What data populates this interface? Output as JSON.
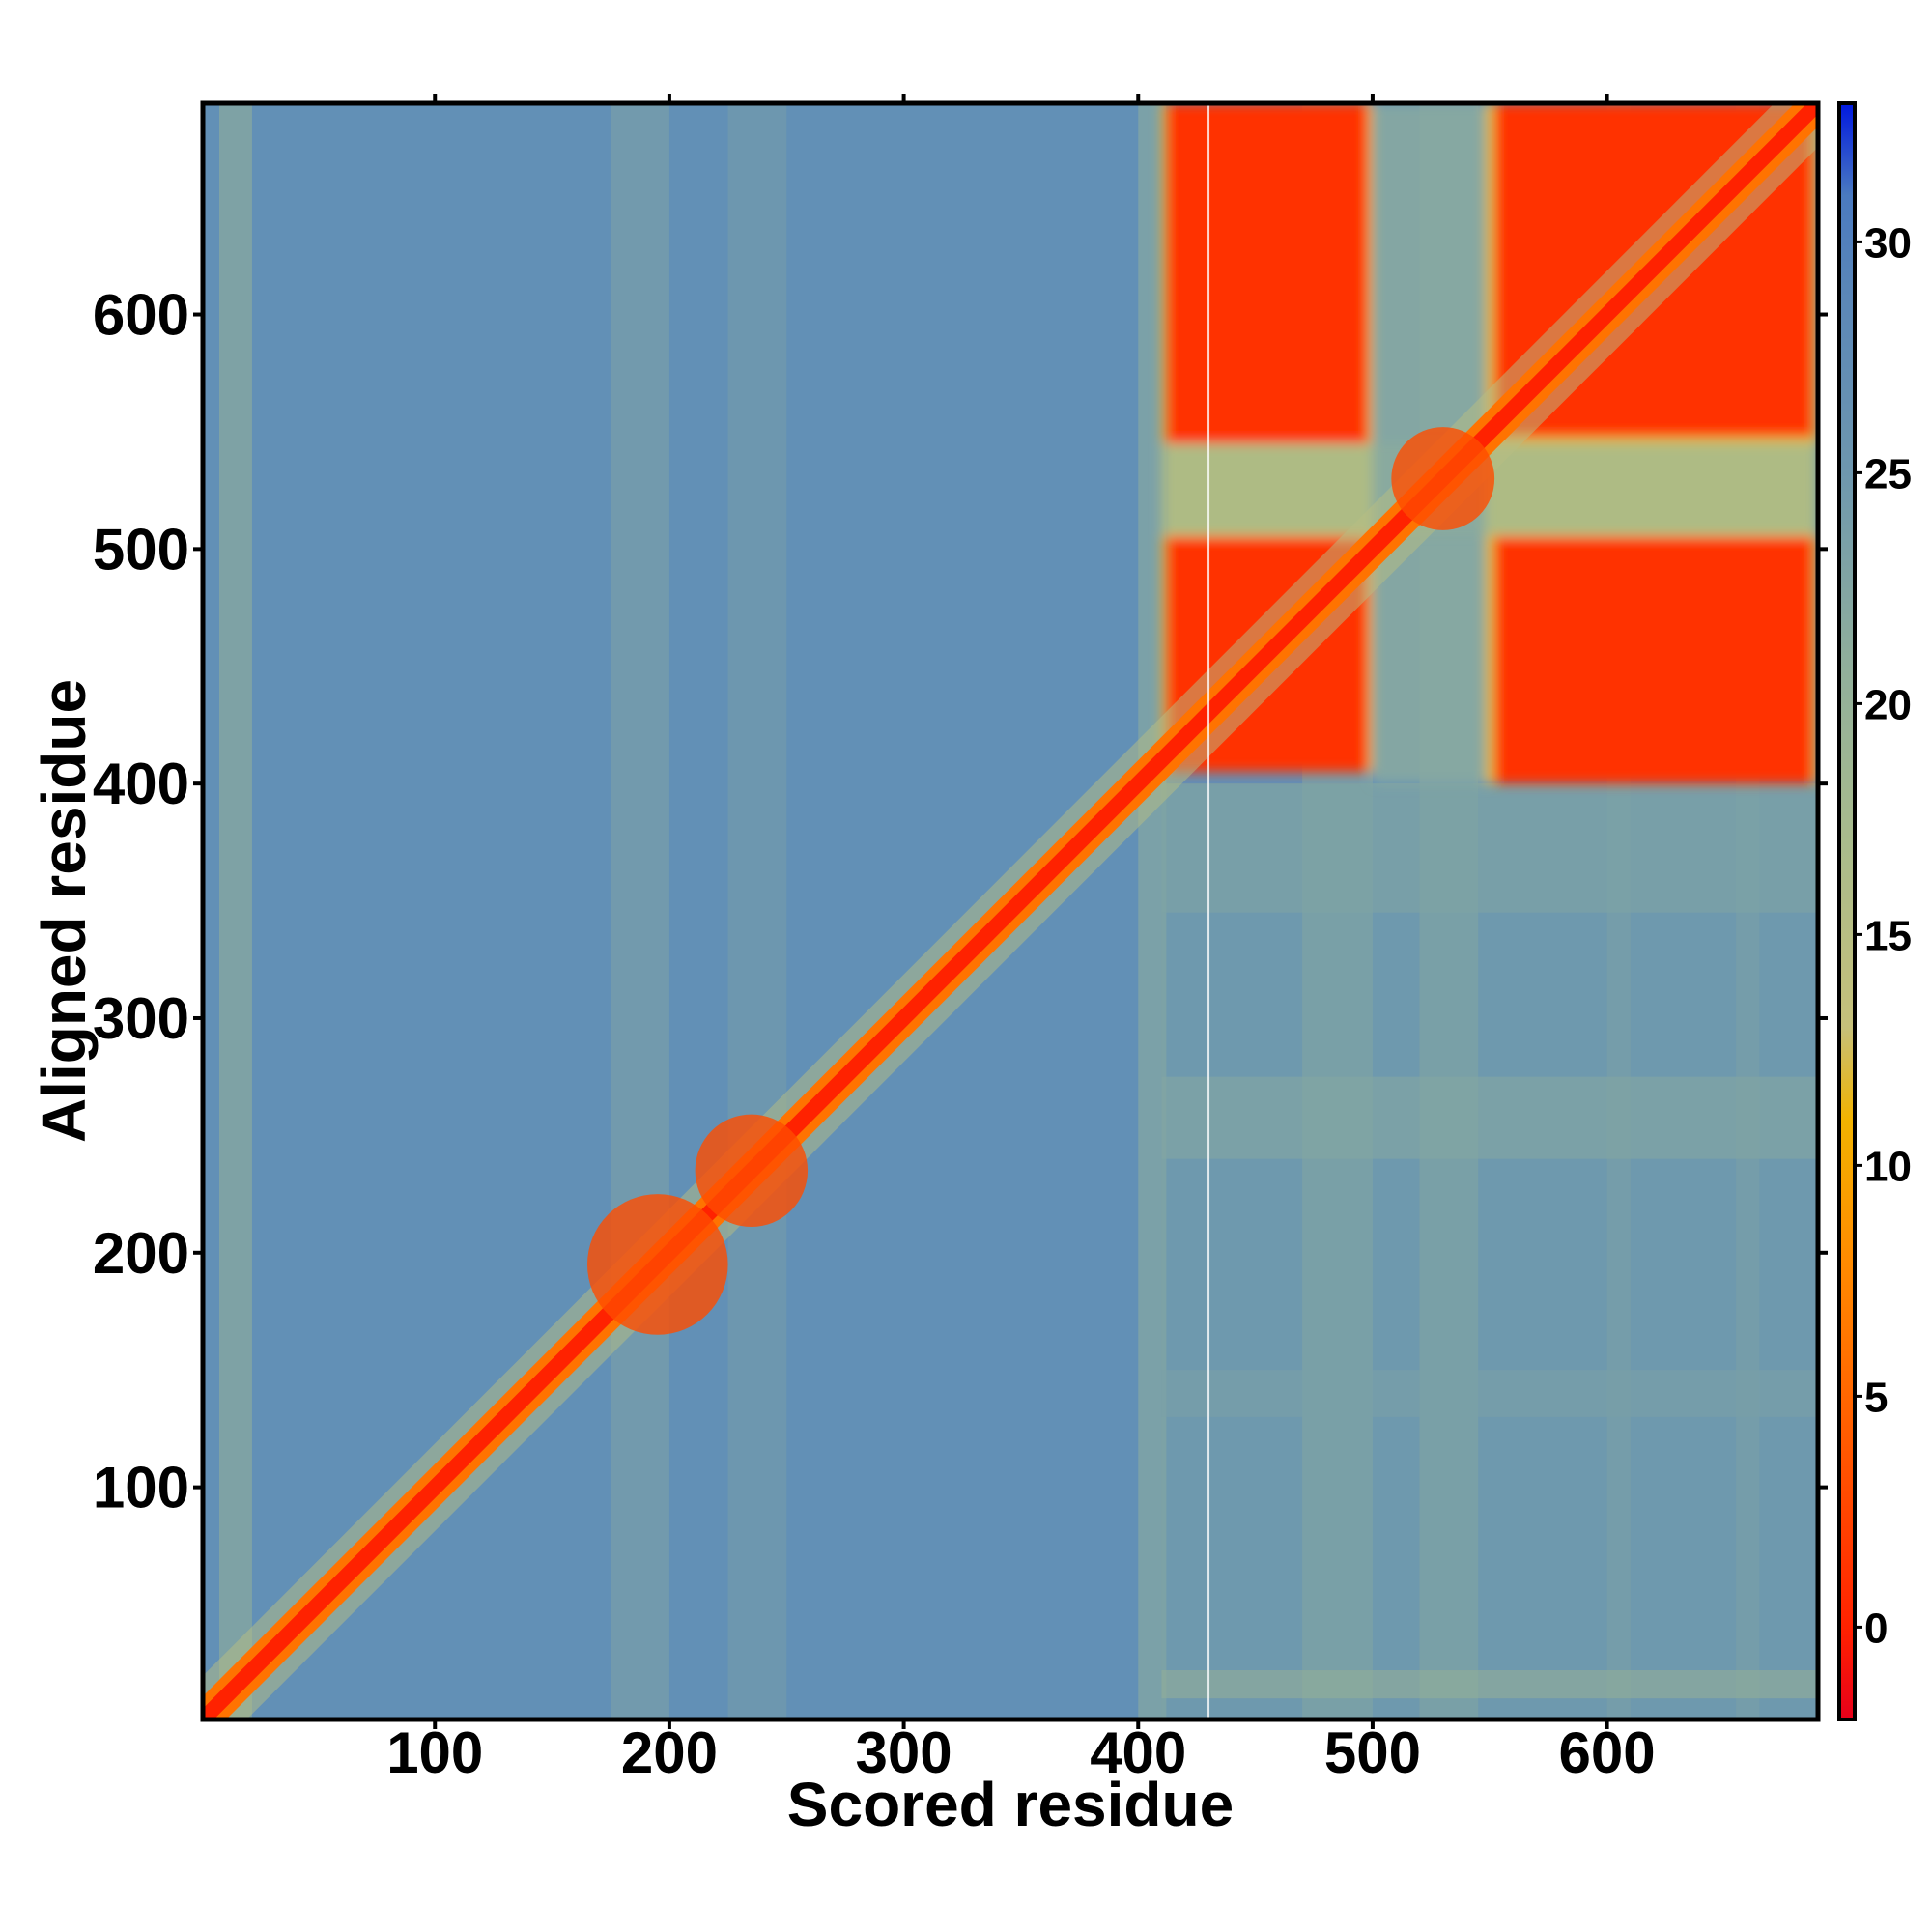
{
  "chart_data": {
    "type": "heatmap",
    "title": "",
    "xlabel": "Scored residue",
    "ylabel": "Aligned residue",
    "xlim": [
      1,
      690
    ],
    "ylim": [
      1,
      690
    ],
    "x_ticks": [
      100,
      200,
      300,
      400,
      500,
      600
    ],
    "y_ticks": [
      100,
      200,
      300,
      400,
      500,
      600
    ],
    "colorbar": {
      "range": [
        -2,
        33
      ],
      "ticks": [
        0,
        5,
        10,
        15,
        20,
        25,
        30
      ],
      "stops": [
        {
          "value": -2,
          "color": "#e8001a"
        },
        {
          "value": 0,
          "color": "#ff2200"
        },
        {
          "value": 4,
          "color": "#ff5a00"
        },
        {
          "value": 8,
          "color": "#ff8c00"
        },
        {
          "value": 11,
          "color": "#f2b300"
        },
        {
          "value": 13,
          "color": "#c6c07a"
        },
        {
          "value": 17,
          "color": "#a9bb8c"
        },
        {
          "value": 21,
          "color": "#8fae9c"
        },
        {
          "value": 25,
          "color": "#6e97ae"
        },
        {
          "value": 29,
          "color": "#5a86b8"
        },
        {
          "value": 31,
          "color": "#4a7ac0"
        },
        {
          "value": 33,
          "color": "#0018e0"
        }
      ]
    },
    "regions": {
      "diagonal_low_error": [
        [
          1,
          690
        ]
      ],
      "domain_blocks_low_error": [
        {
          "x": [
            410,
            500
          ],
          "y": [
            400,
            690
          ]
        },
        {
          "x": [
            550,
            690
          ],
          "y": [
            400,
            690
          ]
        }
      ],
      "background_value": 27
    }
  }
}
